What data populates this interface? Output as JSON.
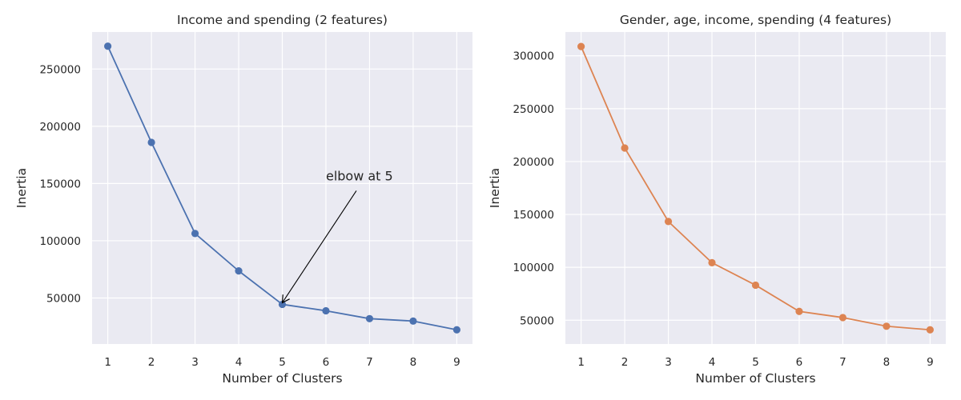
{
  "colors": {
    "background": "#ffffff",
    "plot_bg": "#eaeaf2",
    "grid": "#ffffff",
    "text": "#262626",
    "series_left": "#4c72b0",
    "series_right": "#dd8452"
  },
  "chart_data": [
    {
      "type": "line",
      "title": "Income and spending (2 features)",
      "xlabel": "Number of Clusters",
      "ylabel": "Inertia",
      "x": [
        1,
        2,
        3,
        4,
        5,
        6,
        7,
        8,
        9
      ],
      "values": [
        269981,
        185917,
        106348,
        73679,
        44448,
        38858,
        31969,
        29859,
        22210
      ],
      "xlim": [
        0.64,
        9.36
      ],
      "ylim": [
        9820,
        282370
      ],
      "xticks": [
        "1",
        "2",
        "3",
        "4",
        "5",
        "6",
        "7",
        "8",
        "9"
      ],
      "yticks": [
        50000,
        100000,
        150000,
        200000,
        250000
      ],
      "ytick_labels": [
        "50000",
        "100000",
        "150000",
        "200000",
        "250000"
      ],
      "grid": true,
      "marker": "circle",
      "annotation": {
        "text": "elbow at 5",
        "text_x": 6,
        "text_y": 150000,
        "target_x": 5,
        "target_y": 44448
      }
    },
    {
      "type": "line",
      "title": "Gender, age, income, spending (4 features)",
      "xlabel": "Number of Clusters",
      "ylabel": "Inertia",
      "x": [
        1,
        2,
        3,
        4,
        5,
        6,
        7,
        8,
        9
      ],
      "values": [
        308812,
        212840,
        143343,
        104372,
        83140,
        58300,
        52500,
        44300,
        40900
      ],
      "xlim": [
        0.64,
        9.36
      ],
      "ylim": [
        27500,
        322500
      ],
      "xticks": [
        "1",
        "2",
        "3",
        "4",
        "5",
        "6",
        "7",
        "8",
        "9"
      ],
      "yticks": [
        50000,
        100000,
        150000,
        200000,
        250000,
        300000
      ],
      "ytick_labels": [
        "50000",
        "100000",
        "150000",
        "200000",
        "250000",
        "300000"
      ],
      "grid": true,
      "marker": "circle"
    }
  ]
}
